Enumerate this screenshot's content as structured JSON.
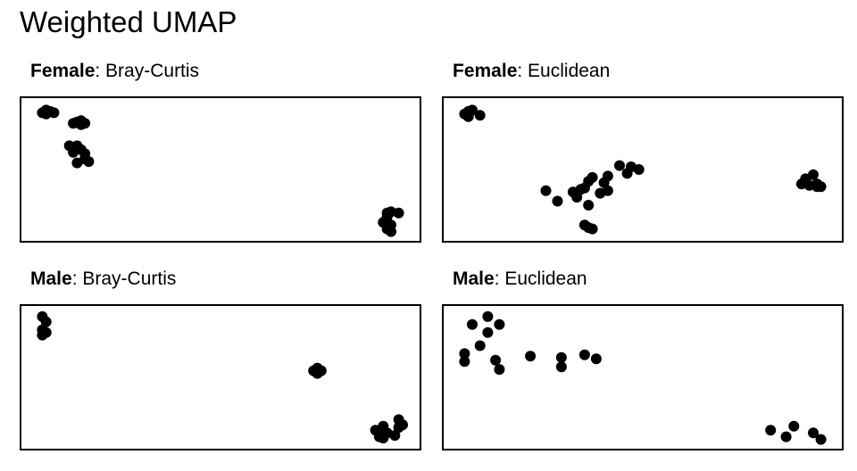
{
  "title": "Weighted UMAP",
  "panels": [
    {
      "sex": "Female",
      "metric": "Bray-Curtis"
    },
    {
      "sex": "Female",
      "metric": "Euclidean"
    },
    {
      "sex": "Male",
      "metric": "Bray-Curtis"
    },
    {
      "sex": "Male",
      "metric": "Euclidean"
    }
  ],
  "chart_data": [
    {
      "type": "scatter",
      "title": "Female: Bray-Curtis",
      "xlabel": "",
      "ylabel": "",
      "grid": false,
      "xlim": [
        0,
        1
      ],
      "ylim": [
        0,
        1
      ],
      "color": "#000000",
      "points": [
        [
          0.04,
          0.93
        ],
        [
          0.05,
          0.92
        ],
        [
          0.06,
          0.94
        ],
        [
          0.05,
          0.95
        ],
        [
          0.07,
          0.93
        ],
        [
          0.12,
          0.85
        ],
        [
          0.13,
          0.86
        ],
        [
          0.14,
          0.84
        ],
        [
          0.15,
          0.85
        ],
        [
          0.14,
          0.87
        ],
        [
          0.11,
          0.68
        ],
        [
          0.12,
          0.63
        ],
        [
          0.13,
          0.68
        ],
        [
          0.14,
          0.65
        ],
        [
          0.15,
          0.62
        ],
        [
          0.13,
          0.55
        ],
        [
          0.15,
          0.58
        ],
        [
          0.16,
          0.56
        ],
        [
          0.93,
          0.17
        ],
        [
          0.94,
          0.18
        ],
        [
          0.96,
          0.17
        ],
        [
          0.93,
          0.14
        ],
        [
          0.92,
          0.1
        ],
        [
          0.93,
          0.05
        ],
        [
          0.94,
          0.08
        ],
        [
          0.94,
          0.03
        ]
      ]
    },
    {
      "type": "scatter",
      "title": "Female: Euclidean",
      "xlabel": "",
      "ylabel": "",
      "grid": false,
      "xlim": [
        0,
        1
      ],
      "ylim": [
        0,
        1
      ],
      "color": "#000000",
      "points": [
        [
          0.04,
          0.92
        ],
        [
          0.05,
          0.94
        ],
        [
          0.06,
          0.95
        ],
        [
          0.05,
          0.9
        ],
        [
          0.08,
          0.91
        ],
        [
          0.44,
          0.53
        ],
        [
          0.47,
          0.52
        ],
        [
          0.49,
          0.5
        ],
        [
          0.46,
          0.47
        ],
        [
          0.35,
          0.36
        ],
        [
          0.33,
          0.29
        ],
        [
          0.36,
          0.23
        ],
        [
          0.28,
          0.26
        ],
        [
          0.25,
          0.34
        ],
        [
          0.32,
          0.33
        ],
        [
          0.34,
          0.35
        ],
        [
          0.4,
          0.4
        ],
        [
          0.41,
          0.45
        ],
        [
          0.36,
          0.41
        ],
        [
          0.37,
          0.44
        ],
        [
          0.39,
          0.32
        ],
        [
          0.41,
          0.34
        ],
        [
          0.35,
          0.08
        ],
        [
          0.36,
          0.06
        ],
        [
          0.37,
          0.05
        ],
        [
          0.92,
          0.43
        ],
        [
          0.94,
          0.46
        ],
        [
          0.95,
          0.37
        ],
        [
          0.93,
          0.38
        ],
        [
          0.95,
          0.39
        ],
        [
          0.91,
          0.39
        ],
        [
          0.96,
          0.37
        ]
      ]
    },
    {
      "type": "scatter",
      "title": "Male: Bray-Curtis",
      "xlabel": "",
      "ylabel": "",
      "grid": false,
      "xlim": [
        0,
        1
      ],
      "ylim": [
        0,
        1
      ],
      "color": "#000000",
      "points": [
        [
          0.04,
          0.96
        ],
        [
          0.05,
          0.92
        ],
        [
          0.04,
          0.86
        ],
        [
          0.05,
          0.84
        ],
        [
          0.04,
          0.82
        ],
        [
          0.74,
          0.55
        ],
        [
          0.75,
          0.57
        ],
        [
          0.76,
          0.55
        ],
        [
          0.75,
          0.53
        ],
        [
          0.9,
          0.1
        ],
        [
          0.91,
          0.08
        ],
        [
          0.92,
          0.13
        ],
        [
          0.93,
          0.08
        ],
        [
          0.95,
          0.06
        ],
        [
          0.96,
          0.18
        ],
        [
          0.97,
          0.14
        ],
        [
          0.96,
          0.12
        ],
        [
          0.92,
          0.04
        ],
        [
          0.91,
          0.05
        ]
      ]
    },
    {
      "type": "scatter",
      "title": "Male: Euclidean",
      "xlabel": "",
      "ylabel": "",
      "grid": false,
      "xlim": [
        0,
        1
      ],
      "ylim": [
        0,
        1
      ],
      "color": "#000000",
      "points": [
        [
          0.06,
          0.9
        ],
        [
          0.1,
          0.96
        ],
        [
          0.13,
          0.9
        ],
        [
          0.1,
          0.84
        ],
        [
          0.08,
          0.74
        ],
        [
          0.04,
          0.68
        ],
        [
          0.04,
          0.62
        ],
        [
          0.12,
          0.63
        ],
        [
          0.13,
          0.56
        ],
        [
          0.21,
          0.66
        ],
        [
          0.29,
          0.65
        ],
        [
          0.29,
          0.58
        ],
        [
          0.35,
          0.67
        ],
        [
          0.38,
          0.64
        ],
        [
          0.83,
          0.1
        ],
        [
          0.87,
          0.05
        ],
        [
          0.89,
          0.13
        ],
        [
          0.94,
          0.08
        ],
        [
          0.96,
          0.03
        ]
      ]
    }
  ]
}
